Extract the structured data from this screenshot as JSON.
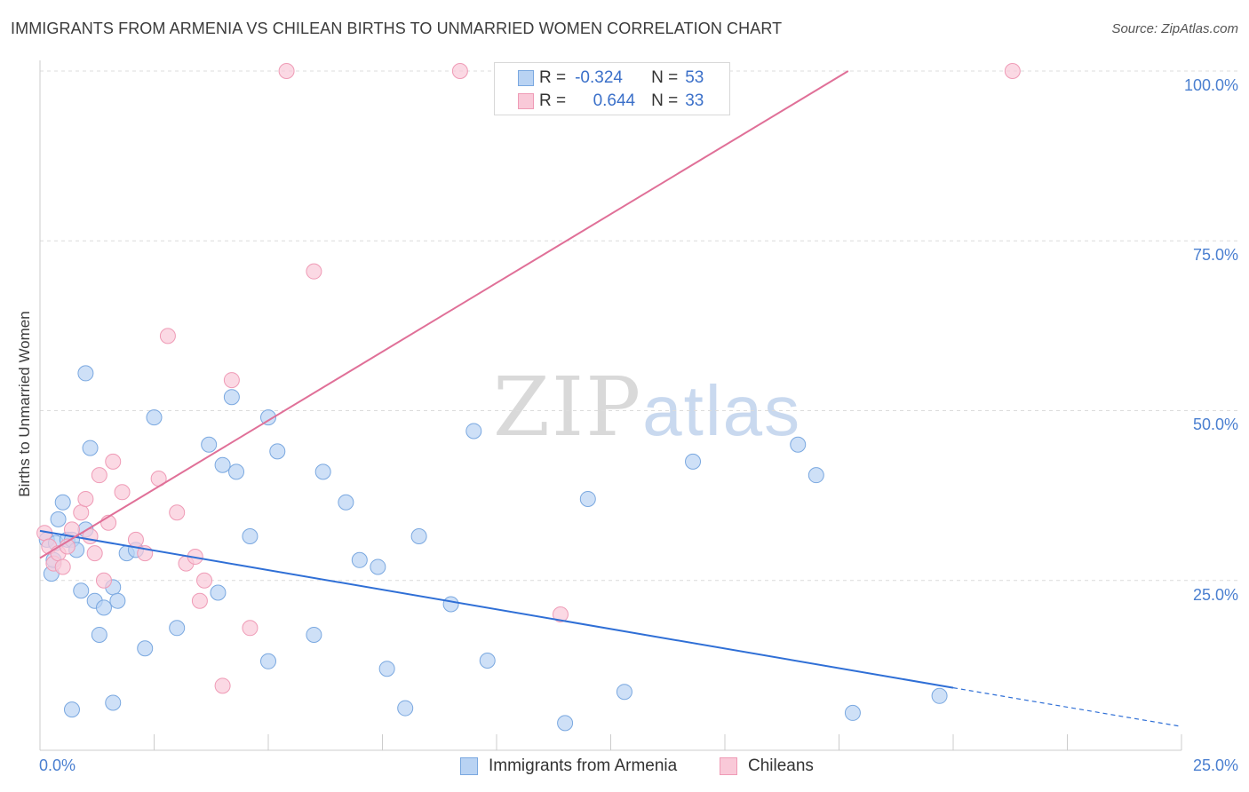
{
  "title": "IMMIGRANTS FROM ARMENIA VS CHILEAN BIRTHS TO UNMARRIED WOMEN CORRELATION CHART",
  "source": "Source: ZipAtlas.com",
  "watermark": {
    "zip": "ZIP",
    "atlas": "atlas"
  },
  "legend": {
    "r_label": "R =",
    "n_label": "N =",
    "rows": [
      {
        "r": "-0.324",
        "n": "53"
      },
      {
        "r": "0.644",
        "n": "33"
      }
    ]
  },
  "colors": {
    "blue_fill": "#b9d3f3",
    "blue_stroke": "#7aa8e0",
    "blue_line": "#2f6fd6",
    "pink_fill": "#f9c9d8",
    "pink_stroke": "#ef9bb6",
    "pink_line": "#e07098",
    "tick_text": "#4a7fd0",
    "grid": "#dcdcdc"
  },
  "chart_data": {
    "type": "scatter",
    "title": "IMMIGRANTS FROM ARMENIA VS CHILEAN BIRTHS TO UNMARRIED WOMEN CORRELATION CHART",
    "xlabel": "",
    "ylabel": "Births to Unmarried Women",
    "xlim": [
      0,
      25
    ],
    "ylim": [
      0,
      100
    ],
    "x_tick_labels": [
      "0.0%",
      "25.0%"
    ],
    "y_ticks": [
      25,
      50,
      75,
      100
    ],
    "y_tick_labels": [
      "25.0%",
      "50.0%",
      "75.0%",
      "100.0%"
    ],
    "legend_position": "bottom-center",
    "series": [
      {
        "name": "Immigrants from Armenia",
        "r": -0.324,
        "n": 53,
        "trend": {
          "x0": 0,
          "y0": 32.3,
          "x1": 20,
          "y1": 9.2,
          "dashed_to_x": 25,
          "dashed_to_y": 3.5
        },
        "points": [
          [
            0.15,
            31
          ],
          [
            0.25,
            26
          ],
          [
            0.3,
            28
          ],
          [
            0.35,
            30.5
          ],
          [
            0.4,
            34
          ],
          [
            0.5,
            36.5
          ],
          [
            0.6,
            31
          ],
          [
            0.7,
            31
          ],
          [
            0.8,
            29.5
          ],
          [
            0.9,
            23.5
          ],
          [
            1.0,
            32.5
          ],
          [
            1.0,
            55.5
          ],
          [
            1.1,
            44.5
          ],
          [
            1.2,
            22
          ],
          [
            1.3,
            17
          ],
          [
            1.4,
            21
          ],
          [
            1.6,
            24
          ],
          [
            1.7,
            22
          ],
          [
            1.9,
            29
          ],
          [
            2.1,
            29.5
          ],
          [
            2.3,
            15
          ],
          [
            2.5,
            49
          ],
          [
            3.7,
            45
          ],
          [
            4.2,
            52
          ],
          [
            4.0,
            42
          ],
          [
            4.3,
            41
          ],
          [
            4.6,
            31.5
          ],
          [
            5.2,
            44
          ],
          [
            5.0,
            49
          ],
          [
            6.2,
            41
          ],
          [
            6.7,
            36.5
          ],
          [
            7.0,
            28
          ],
          [
            7.4,
            27
          ],
          [
            6.0,
            17
          ],
          [
            7.6,
            12
          ],
          [
            8.3,
            31.5
          ],
          [
            9.0,
            21.5
          ],
          [
            9.8,
            13.2
          ],
          [
            9.5,
            47
          ],
          [
            12.0,
            37
          ],
          [
            12.8,
            8.6
          ],
          [
            16.6,
            45
          ],
          [
            17.0,
            40.5
          ],
          [
            17.8,
            5.5
          ],
          [
            14.3,
            42.5
          ],
          [
            11.5,
            4
          ],
          [
            0.7,
            6
          ],
          [
            1.6,
            7
          ],
          [
            3.0,
            18
          ],
          [
            3.9,
            23.2
          ],
          [
            5.0,
            13.1
          ],
          [
            8.0,
            6.2
          ],
          [
            19.7,
            8
          ]
        ]
      },
      {
        "name": "Chileans",
        "r": 0.644,
        "n": 33,
        "trend": {
          "x0": 0,
          "y0": 28.3,
          "x1": 17.7,
          "y1": 100
        },
        "points": [
          [
            0.1,
            32
          ],
          [
            0.2,
            30
          ],
          [
            0.3,
            27.5
          ],
          [
            0.4,
            29
          ],
          [
            0.5,
            27
          ],
          [
            0.6,
            30
          ],
          [
            0.7,
            32.5
          ],
          [
            0.9,
            35
          ],
          [
            1.0,
            37
          ],
          [
            1.1,
            31.5
          ],
          [
            1.2,
            29
          ],
          [
            1.3,
            40.5
          ],
          [
            1.4,
            25
          ],
          [
            1.5,
            33.5
          ],
          [
            1.6,
            42.5
          ],
          [
            1.8,
            38
          ],
          [
            2.1,
            31
          ],
          [
            2.3,
            29
          ],
          [
            2.6,
            40
          ],
          [
            2.8,
            61
          ],
          [
            3.0,
            35
          ],
          [
            3.2,
            27.5
          ],
          [
            3.4,
            28.5
          ],
          [
            3.5,
            22
          ],
          [
            3.6,
            25
          ],
          [
            4.0,
            9.5
          ],
          [
            4.2,
            54.5
          ],
          [
            4.6,
            18
          ],
          [
            5.4,
            100
          ],
          [
            6.0,
            70.5
          ],
          [
            9.2,
            100
          ],
          [
            11.4,
            20
          ],
          [
            21.3,
            100
          ]
        ]
      }
    ]
  },
  "bottom_legend": [
    "Immigrants from Armenia",
    "Chileans"
  ]
}
